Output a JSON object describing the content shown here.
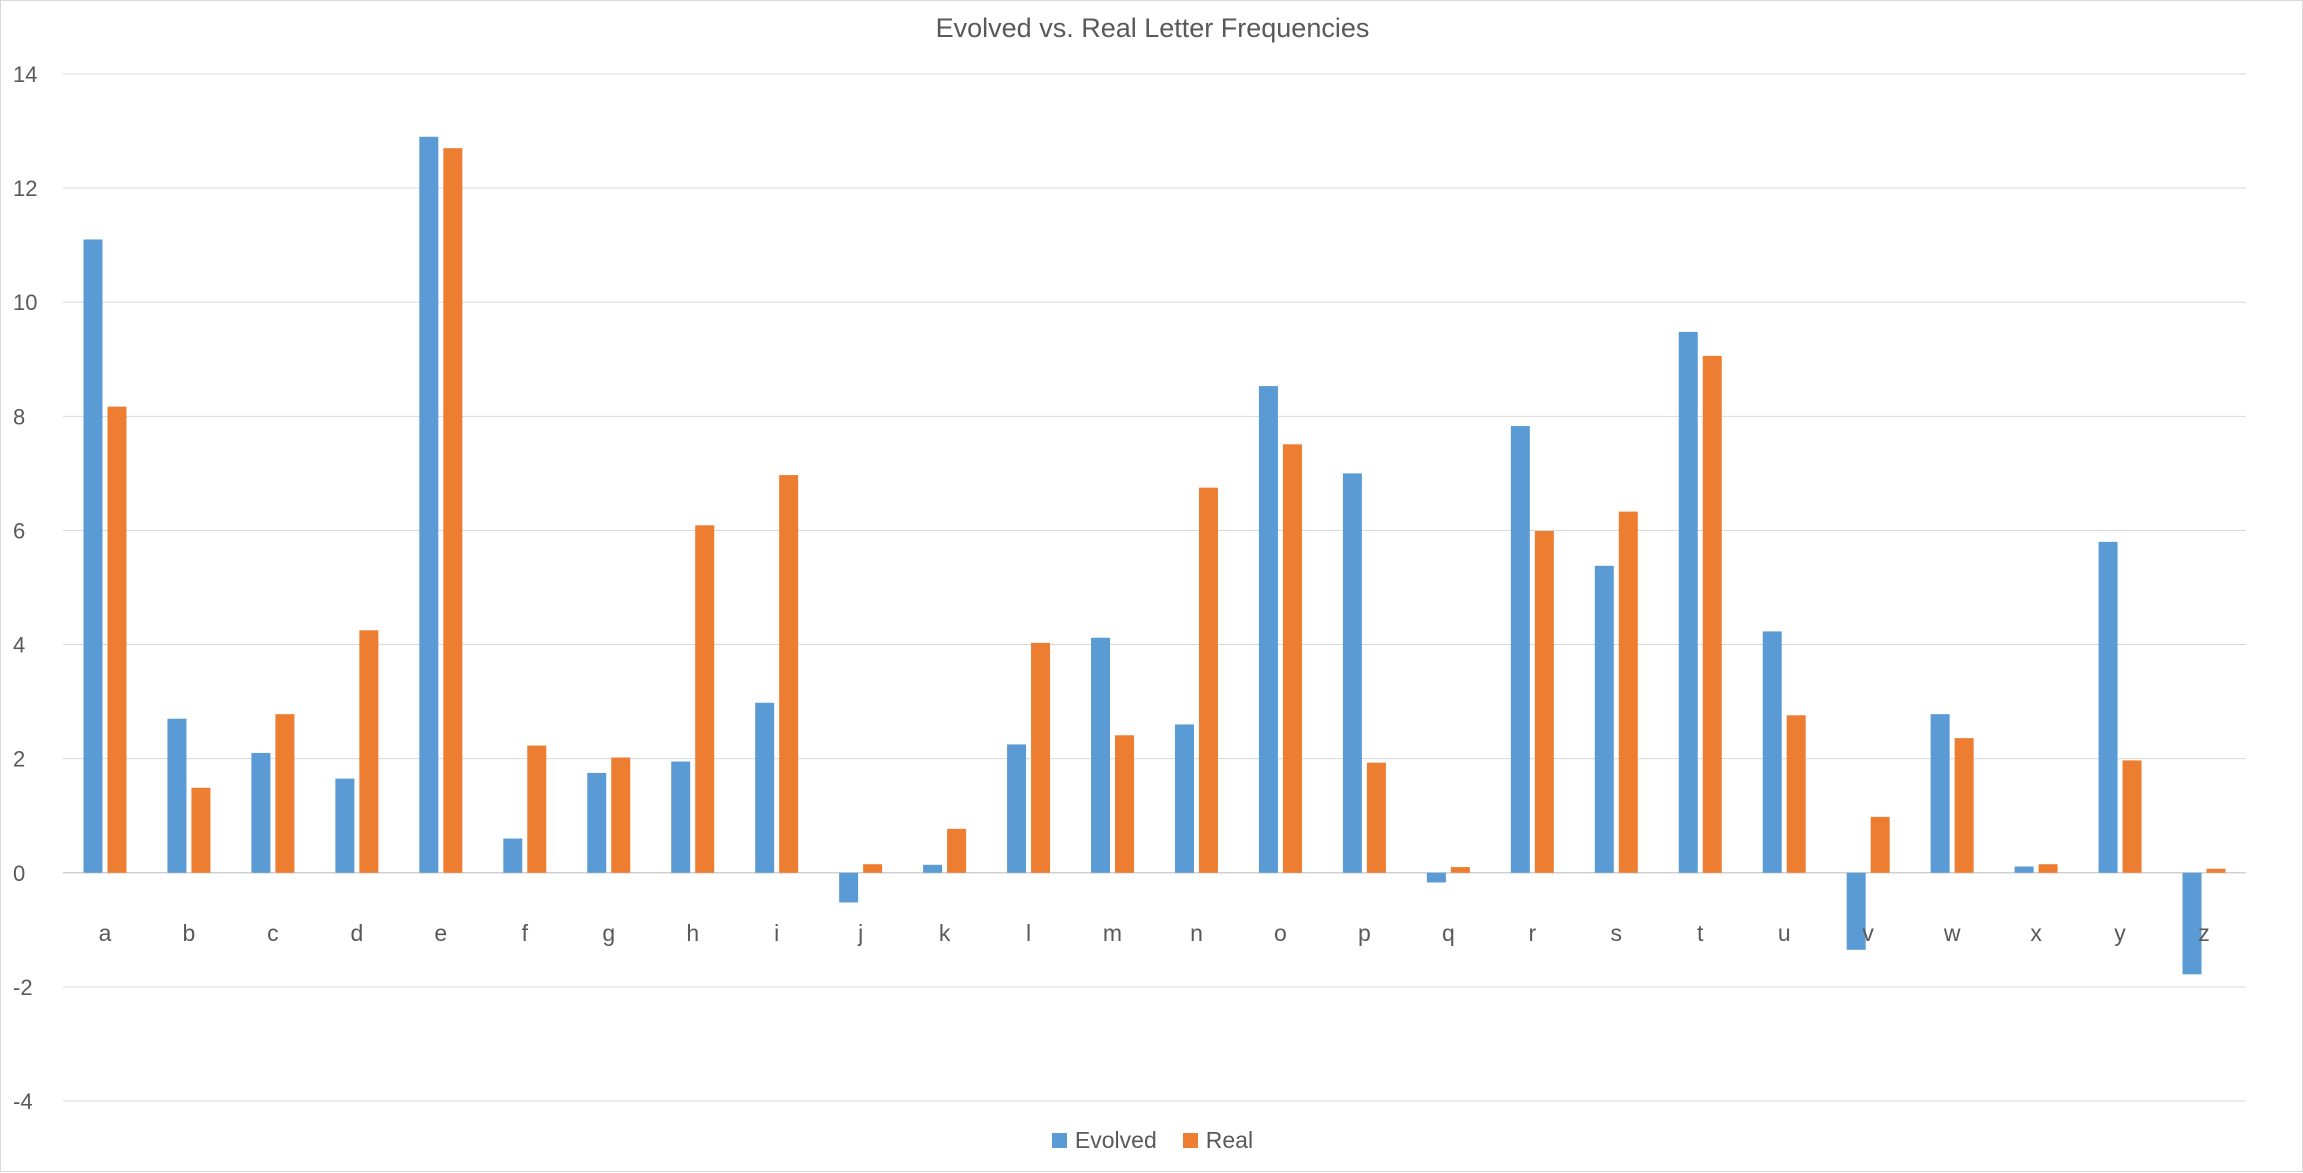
{
  "chart_data": {
    "type": "bar",
    "title": "Evolved vs. Real Letter Frequencies",
    "xlabel": "",
    "ylabel": "",
    "ylim": [
      -4,
      14
    ],
    "yticks": [
      -4,
      -2,
      0,
      2,
      4,
      6,
      8,
      10,
      12,
      14
    ],
    "grid": true,
    "legend_position": "bottom",
    "categories": [
      "a",
      "b",
      "c",
      "d",
      "e",
      "f",
      "g",
      "h",
      "i",
      "j",
      "k",
      "l",
      "m",
      "n",
      "o",
      "p",
      "q",
      "r",
      "s",
      "t",
      "u",
      "v",
      "w",
      "x",
      "y",
      "z"
    ],
    "series": [
      {
        "name": "Evolved",
        "color": "#5b9bd5",
        "values": [
          11.1,
          2.7,
          2.1,
          1.65,
          12.9,
          0.6,
          1.75,
          1.95,
          2.98,
          -0.52,
          0.14,
          2.25,
          4.12,
          2.6,
          8.53,
          7.0,
          -0.17,
          7.83,
          5.38,
          9.48,
          4.23,
          -1.35,
          2.78,
          0.11,
          5.8,
          -1.78
        ]
      },
      {
        "name": "Real",
        "color": "#ed7d31",
        "values": [
          8.17,
          1.49,
          2.78,
          4.25,
          12.7,
          2.23,
          2.02,
          6.09,
          6.97,
          0.15,
          0.77,
          4.03,
          2.41,
          6.75,
          7.51,
          1.93,
          0.1,
          5.99,
          6.33,
          9.06,
          2.76,
          0.98,
          2.36,
          0.15,
          1.97,
          0.07
        ]
      }
    ]
  }
}
